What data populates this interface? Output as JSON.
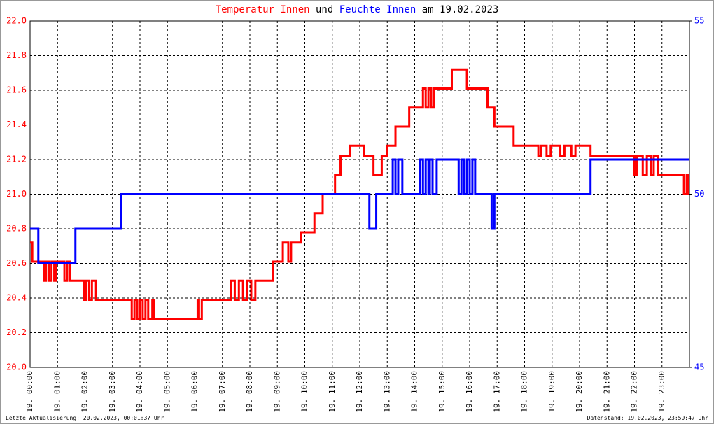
{
  "chart_data": {
    "type": "line",
    "step": "post",
    "title_join": "und",
    "title_suffix": "am 19.02.2023",
    "footer_left": "Letzte Aktualisierung: 20.02.2023, 00:01:37 Uhr",
    "footer_right": "Datenstand: 19.02.2023, 23:59:47 Uhr",
    "xlim": [
      0,
      24
    ],
    "xticks": [
      {
        "value": 0,
        "label": "19. 00:00"
      },
      {
        "value": 1,
        "label": "19. 01:00"
      },
      {
        "value": 2,
        "label": "19. 02:00"
      },
      {
        "value": 3,
        "label": "19. 03:00"
      },
      {
        "value": 4,
        "label": "19. 04:00"
      },
      {
        "value": 5,
        "label": "19. 05:00"
      },
      {
        "value": 6,
        "label": "19. 06:00"
      },
      {
        "value": 7,
        "label": "19. 07:00"
      },
      {
        "value": 8,
        "label": "19. 08:00"
      },
      {
        "value": 9,
        "label": "19. 09:00"
      },
      {
        "value": 10,
        "label": "19. 10:00"
      },
      {
        "value": 11,
        "label": "19. 11:00"
      },
      {
        "value": 12,
        "label": "19. 12:00"
      },
      {
        "value": 13,
        "label": "19. 13:00"
      },
      {
        "value": 14,
        "label": "19. 14:00"
      },
      {
        "value": 15,
        "label": "19. 15:00"
      },
      {
        "value": 16,
        "label": "19. 16:00"
      },
      {
        "value": 17,
        "label": "19. 17:00"
      },
      {
        "value": 18,
        "label": "19. 18:00"
      },
      {
        "value": 19,
        "label": "19. 19:00"
      },
      {
        "value": 20,
        "label": "19. 20:00"
      },
      {
        "value": 21,
        "label": "19. 21:00"
      },
      {
        "value": 22,
        "label": "19. 22:00"
      },
      {
        "value": 23,
        "label": "19. 23:00"
      }
    ],
    "ylim": [
      20,
      22
    ],
    "yticks": [
      {
        "value": 20,
        "label": "20.0"
      },
      20.2,
      20.4,
      20.6,
      20.8,
      {
        "value": 21,
        "label": "21.0"
      },
      21.2,
      21.4,
      21.6,
      21.8,
      {
        "value": 22,
        "label": "22.0"
      }
    ],
    "y2lim": [
      45,
      55
    ],
    "y2ticks": [
      45,
      50,
      55
    ],
    "grid": true,
    "series": [
      {
        "name": "Temperatur Innen",
        "color": "#ff0000",
        "x": [
          0,
          0.08,
          0.5,
          0.58,
          0.7,
          0.78,
          0.88,
          0.95,
          1.25,
          1.35,
          1.45,
          1.95,
          2.05,
          2.15,
          2.25,
          2.4,
          3.7,
          3.8,
          3.9,
          4.0,
          4.1,
          4.2,
          4.3,
          4.45,
          4.5,
          6.1,
          6.15,
          6.25,
          7.3,
          7.45,
          7.6,
          7.75,
          7.9,
          8.05,
          8.2,
          8.85,
          9.2,
          9.4,
          9.5,
          9.85,
          10.35,
          10.65,
          11.1,
          11.3,
          11.65,
          12.15,
          12.5,
          12.8,
          13.0,
          13.3,
          13.8,
          14.3,
          14.4,
          14.5,
          14.6,
          14.7,
          15.35,
          15.9,
          16.65,
          16.9,
          17.6,
          18.5,
          18.6,
          18.8,
          18.95,
          19.3,
          19.45,
          19.7,
          19.85,
          20.4,
          22.0,
          22.1,
          22.3,
          22.45,
          22.6,
          22.7,
          22.85,
          23.8,
          23.9,
          23.95
        ],
        "values": [
          20.72,
          20.61,
          20.5,
          20.61,
          20.5,
          20.61,
          20.5,
          20.61,
          20.5,
          20.61,
          20.5,
          20.39,
          20.5,
          20.39,
          20.5,
          20.39,
          20.28,
          20.39,
          20.28,
          20.39,
          20.28,
          20.39,
          20.28,
          20.39,
          20.28,
          20.39,
          20.28,
          20.39,
          20.5,
          20.39,
          20.5,
          20.39,
          20.5,
          20.39,
          20.5,
          20.61,
          20.72,
          20.61,
          20.72,
          20.78,
          20.89,
          21.0,
          21.11,
          21.22,
          21.28,
          21.22,
          21.11,
          21.22,
          21.28,
          21.39,
          21.5,
          21.61,
          21.5,
          21.61,
          21.5,
          21.61,
          21.72,
          21.61,
          21.5,
          21.39,
          21.28,
          21.22,
          21.28,
          21.22,
          21.28,
          21.22,
          21.28,
          21.22,
          21.28,
          21.22,
          21.11,
          21.22,
          21.11,
          21.22,
          21.11,
          21.22,
          21.11,
          21.0,
          21.11,
          21.0
        ]
      },
      {
        "name": "Feuchte Innen",
        "color": "#0000ff",
        "axis": "y2",
        "x": [
          0,
          0.3,
          1.65,
          3.3,
          12.35,
          12.6,
          13.2,
          13.3,
          13.4,
          13.55,
          14.2,
          14.3,
          14.4,
          14.5,
          14.55,
          14.65,
          14.8,
          15.6,
          15.7,
          15.8,
          15.9,
          16.0,
          16.1,
          16.2,
          16.8,
          16.9,
          20.4
        ],
        "values": [
          49,
          48,
          49,
          50,
          49,
          50,
          51,
          50,
          51,
          50,
          51,
          50,
          51,
          50,
          51,
          50,
          51,
          50,
          51,
          50,
          51,
          50,
          51,
          50,
          49,
          50,
          51
        ]
      }
    ]
  }
}
